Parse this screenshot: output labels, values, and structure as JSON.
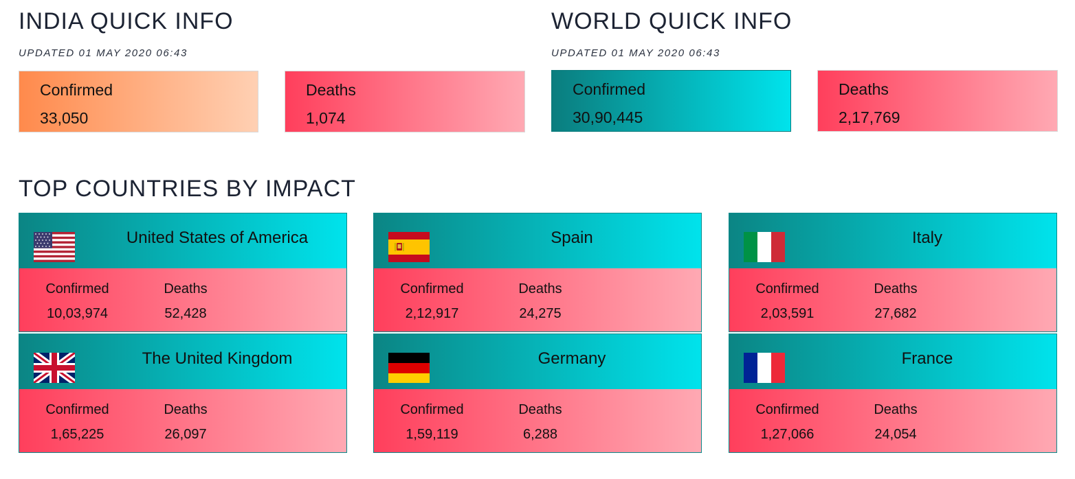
{
  "india": {
    "title": "INDIA QUICK INFO",
    "updated": "UPDATED 01 MAY 2020 06:43",
    "confirmed_label": "Confirmed",
    "confirmed_value": "33,050",
    "deaths_label": "Deaths",
    "deaths_value": "1,074"
  },
  "world": {
    "title": "WORLD QUICK INFO",
    "updated": "UPDATED 01 MAY 2020 06:43",
    "confirmed_label": "Confirmed",
    "confirmed_value": "30,90,445",
    "deaths_label": "Deaths",
    "deaths_value": "2,17,769"
  },
  "top": {
    "title": "TOP COUNTRIES BY IMPACT",
    "countries": [
      {
        "name": "United States of America",
        "flag": "us-flag-icon",
        "confirmed_label": "Confirmed",
        "confirmed": "10,03,974",
        "deaths_label": "Deaths",
        "deaths": "52,428"
      },
      {
        "name": "Spain",
        "flag": "spain-flag-icon",
        "confirmed_label": "Confirmed",
        "confirmed": "2,12,917",
        "deaths_label": "Deaths",
        "deaths": "24,275"
      },
      {
        "name": "Italy",
        "flag": "italy-flag-icon",
        "confirmed_label": "Confirmed",
        "confirmed": "2,03,591",
        "deaths_label": "Deaths",
        "deaths": "27,682"
      },
      {
        "name": "The United Kingdom",
        "flag": "uk-flag-icon",
        "confirmed_label": "Confirmed",
        "confirmed": "1,65,225",
        "deaths_label": "Deaths",
        "deaths": "26,097"
      },
      {
        "name": "Germany",
        "flag": "germany-flag-icon",
        "confirmed_label": "Confirmed",
        "confirmed": "1,59,119",
        "deaths_label": "Deaths",
        "deaths": "6,288"
      },
      {
        "name": "France",
        "flag": "france-flag-icon",
        "confirmed_label": "Confirmed",
        "confirmed": "1,27,066",
        "deaths_label": "Deaths",
        "deaths": "24,054"
      }
    ]
  },
  "colors": {
    "teal_start": "#0b7d7e",
    "teal_end": "#00e3ec",
    "red_start": "#ff3f5c",
    "red_end": "#ffa9b3",
    "orange_start": "#ff8a4c",
    "orange_end": "#ffd0b3"
  }
}
